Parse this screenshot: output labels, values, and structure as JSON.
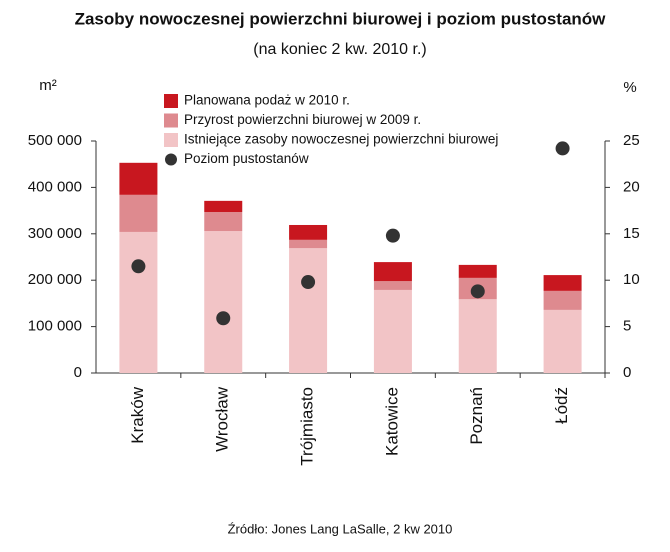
{
  "chart_data": {
    "type": "bar",
    "title": "Zasoby nowoczesnej powierzchni biurowej i poziom pustostanów",
    "subtitle": "(na koniec 2 kw. 2010 r.)",
    "y_label": "m²",
    "y2_label": "%",
    "source": "Źródło: Jones Lang LaSalle, 2 kw 2010",
    "categories": [
      "Kraków",
      "Wrocław",
      "Trójmiasto",
      "Katowice",
      "Poznań",
      "Łódź"
    ],
    "series": [
      {
        "name": "Istniejące zasoby nowoczesnej powierzchni biurowej",
        "color": "#f2c4c6",
        "values": [
          304000,
          306000,
          269000,
          179000,
          159000,
          136000
        ]
      },
      {
        "name": "Przyrost powierzchni biurowej w 2009 r.",
        "color": "#de8a8f",
        "values": [
          80000,
          41000,
          18000,
          19000,
          46000,
          41000
        ]
      },
      {
        "name": "Planowana podaż w 2010 r.",
        "color": "#c8171f",
        "values": [
          69000,
          24000,
          32000,
          41000,
          28000,
          34000
        ]
      },
      {
        "name": "Poziom pustostanów",
        "color": "#333333",
        "type": "scatter",
        "axis": "y2",
        "values": [
          11.5,
          5.9,
          9.8,
          14.8,
          8.8,
          24.2
        ]
      }
    ],
    "legend_order": [
      2,
      1,
      0,
      3
    ],
    "ylim": [
      0,
      500000
    ],
    "yticks": [
      0,
      {
        "value": 100000,
        "label": "100 000"
      },
      {
        "value": 200000,
        "label": "200 000"
      },
      {
        "value": 300000,
        "label": "300 000"
      },
      {
        "value": 400000,
        "label": "400 000"
      },
      {
        "value": 500000,
        "label": "500 000"
      }
    ],
    "y2lim": [
      0,
      25
    ],
    "y2ticks": [
      0,
      5,
      10,
      15,
      20,
      25
    ],
    "grid": false
  }
}
